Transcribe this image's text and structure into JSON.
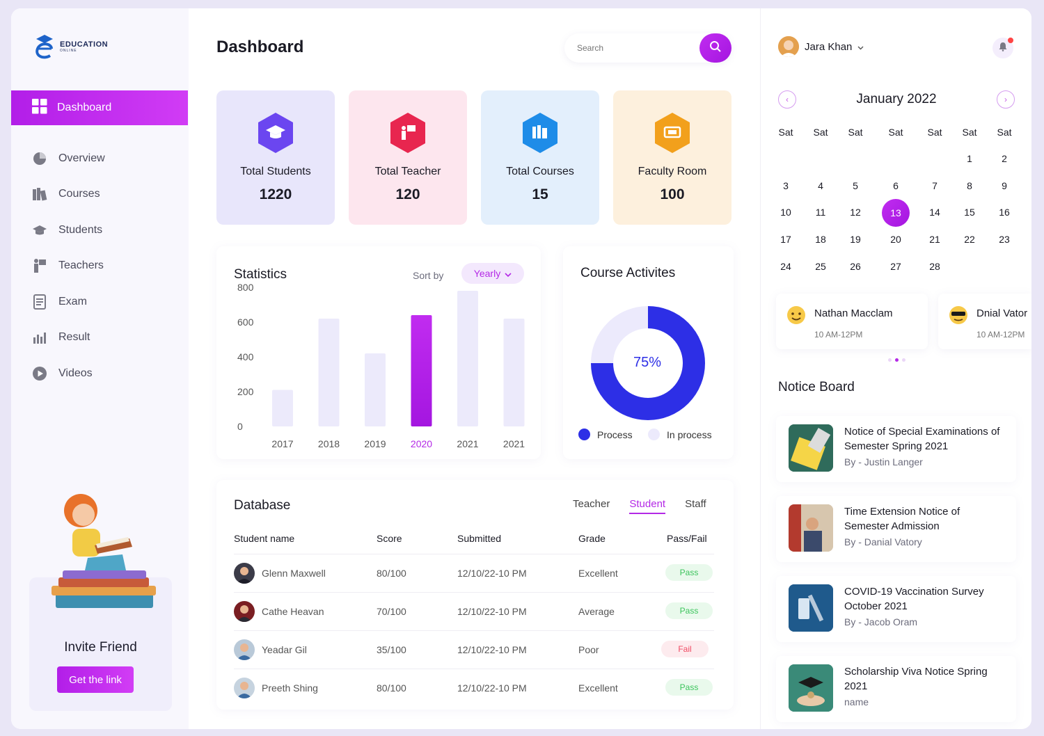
{
  "brand": {
    "name": "EDUCATION",
    "sub": "ONLINE"
  },
  "sidebar": {
    "active": "Dashboard",
    "items": [
      {
        "label": "Overview",
        "icon": "pie-chart-icon"
      },
      {
        "label": "Courses",
        "icon": "books-icon"
      },
      {
        "label": "Students",
        "icon": "graduation-cap-icon"
      },
      {
        "label": "Teachers",
        "icon": "teacher-board-icon"
      },
      {
        "label": "Exam",
        "icon": "exam-paper-icon"
      },
      {
        "label": "Result",
        "icon": "bar-chart-icon"
      },
      {
        "label": "Videos",
        "icon": "play-icon"
      }
    ],
    "invite": {
      "title": "Invite Friend",
      "button": "Get the link"
    }
  },
  "header": {
    "title": "Dashboard",
    "search_placeholder": "Search"
  },
  "cards": [
    {
      "label": "Total Students",
      "value": "1220",
      "color": "#6b46f0",
      "bg": "#e8e6fb"
    },
    {
      "label": "Total Teacher",
      "value": "120",
      "color": "#e8264f",
      "bg": "#fde6ee"
    },
    {
      "label": "Total Courses",
      "value": "15",
      "color": "#1e8ce8",
      "bg": "#e3effc"
    },
    {
      "label": "Faculty Room",
      "value": "100",
      "color": "#f2a01c",
      "bg": "#fdf0dd"
    }
  ],
  "statistics": {
    "title": "Statistics",
    "sort_label": "Sort by",
    "sort_value": "Yearly",
    "chart_data": {
      "type": "bar",
      "categories": [
        "2017",
        "2018",
        "2019",
        "2020",
        "2021",
        "2021"
      ],
      "values": [
        210,
        620,
        420,
        640,
        780,
        620
      ],
      "highlight_index": 3,
      "y_ticks": [
        "800",
        "600",
        "400",
        "200",
        "0"
      ],
      "ylim": [
        0,
        800
      ]
    }
  },
  "course_activities": {
    "title": "Course Activites",
    "percent_label": "75%",
    "chart_data": {
      "type": "pie",
      "labels": [
        "Process",
        "In process"
      ],
      "values": [
        75,
        25
      ],
      "colors": [
        "#2d2fe6",
        "#eceafc"
      ]
    }
  },
  "database": {
    "title": "Database",
    "tabs": [
      "Teacher",
      "Student",
      "Staff"
    ],
    "active_tab": "Student",
    "columns": [
      "Student name",
      "Score",
      "Submitted",
      "Grade",
      "Pass/Fail"
    ],
    "rows": [
      {
        "name": "Glenn Maxwell",
        "score": "80/100",
        "submitted": "12/10/22-10 PM",
        "grade": "Excellent",
        "result": "Pass"
      },
      {
        "name": "Cathe Heavan",
        "score": "70/100",
        "submitted": "12/10/22-10 PM",
        "grade": "Average",
        "result": "Pass"
      },
      {
        "name": "Yeadar Gil",
        "score": "35/100",
        "submitted": "12/10/22-10 PM",
        "grade": "Poor",
        "result": "Fail"
      },
      {
        "name": "Preeth Shing",
        "score": "80/100",
        "submitted": "12/10/22-10 PM",
        "grade": "Excellent",
        "result": "Pass"
      }
    ]
  },
  "user": {
    "name": "Jara Khan"
  },
  "calendar": {
    "month": "January 2022",
    "weekdays": [
      "Sat",
      "Sat",
      "Sat",
      "Sat",
      "Sat",
      "Sat",
      "Sat"
    ],
    "selected": "13",
    "weeks": [
      [
        "",
        "",
        "",
        "",
        "",
        "1",
        "2"
      ],
      [
        "3",
        "4",
        "5",
        "6",
        "7",
        "8",
        "9"
      ],
      [
        "10",
        "11",
        "12",
        "13",
        "14",
        "15",
        "16"
      ],
      [
        "17",
        "18",
        "19",
        "20",
        "21",
        "22",
        "23"
      ],
      [
        "24",
        "25",
        "26",
        "27",
        "28",
        "",
        ""
      ]
    ]
  },
  "events": [
    {
      "name": "Nathan Macclam",
      "time": "10 AM-12PM"
    },
    {
      "name": "Dnial Vator",
      "time": "10 AM-12PM"
    }
  ],
  "notice_board": {
    "title": "Notice Board",
    "items": [
      {
        "title": "Notice of Special Examinations of Semester Spring 2021",
        "by": "By - Justin Langer"
      },
      {
        "title": "Time Extension Notice of Semester Admission",
        "by": "By - Danial Vatory"
      },
      {
        "title": "COVID-19 Vaccination Survey October 2021",
        "by": "By - Jacob Oram"
      },
      {
        "title": "Scholarship Viva Notice Spring 2021",
        "by": "name"
      }
    ]
  }
}
